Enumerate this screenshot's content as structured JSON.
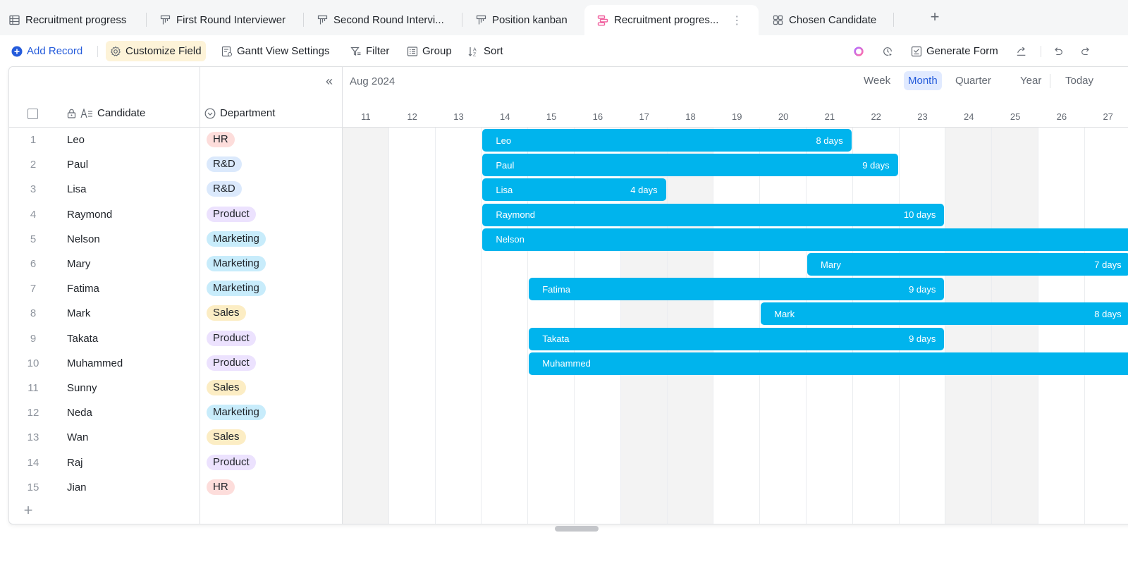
{
  "tabs": [
    {
      "label": "Recruitment progress",
      "icon": "grid-table-icon",
      "active": false
    },
    {
      "label": "First Round Interviewer",
      "icon": "kanban-icon",
      "active": false
    },
    {
      "label": "Second Round Intervi...",
      "icon": "kanban-icon",
      "active": false
    },
    {
      "label": "Position kanban",
      "icon": "kanban-icon",
      "active": false
    },
    {
      "label": "Recruitment progres...",
      "icon": "gantt-icon",
      "active": true
    },
    {
      "label": "Chosen Candidate",
      "icon": "gallery-icon",
      "active": false
    }
  ],
  "tab_add_label": "+",
  "tab_more_label": "⋮",
  "toolbar": {
    "add_record": "Add Record",
    "customize_field": "Customize Field",
    "gantt_settings": "Gantt View Settings",
    "filter": "Filter",
    "group": "Group",
    "sort": "Sort",
    "generate_form": "Generate Form"
  },
  "table": {
    "columns": {
      "candidate": "Candidate",
      "department": "Department"
    },
    "collapse_label": "«",
    "add_row_label": "+",
    "rows": [
      {
        "num": "1",
        "name": "Leo",
        "dept": "HR"
      },
      {
        "num": "2",
        "name": "Paul",
        "dept": "R&D"
      },
      {
        "num": "3",
        "name": "Lisa",
        "dept": "R&D"
      },
      {
        "num": "4",
        "name": "Raymond",
        "dept": "Product"
      },
      {
        "num": "5",
        "name": "Nelson",
        "dept": "Marketing"
      },
      {
        "num": "6",
        "name": "Mary",
        "dept": "Marketing"
      },
      {
        "num": "7",
        "name": "Fatima",
        "dept": "Marketing"
      },
      {
        "num": "8",
        "name": "Mark",
        "dept": "Sales"
      },
      {
        "num": "9",
        "name": "Takata",
        "dept": "Product"
      },
      {
        "num": "10",
        "name": "Muhammed",
        "dept": "Product"
      },
      {
        "num": "11",
        "name": "Sunny",
        "dept": "Sales"
      },
      {
        "num": "12",
        "name": "Neda",
        "dept": "Marketing"
      },
      {
        "num": "13",
        "name": "Wan",
        "dept": "Sales"
      },
      {
        "num": "14",
        "name": "Raj",
        "dept": "Product"
      },
      {
        "num": "15",
        "name": "Jian",
        "dept": "HR"
      }
    ]
  },
  "dept_colors": {
    "HR": "#fddddb",
    "R&D": "#dbe9fc",
    "Product": "#ece2fe",
    "Marketing": "#c8ecfb",
    "Sales": "#fcedc4"
  },
  "gantt": {
    "month_label": "Aug 2024",
    "scales": [
      "Week",
      "Month",
      "Quarter",
      "Year"
    ],
    "active_scale": "Month",
    "today_label": "Today",
    "bar_color": "#00b4ed",
    "days": [
      "11",
      "12",
      "13",
      "14",
      "15",
      "16",
      "17",
      "18",
      "19",
      "20",
      "21",
      "22",
      "23",
      "24",
      "25",
      "26",
      "27"
    ],
    "weekends": [
      "11",
      "17",
      "18",
      "24",
      "25"
    ],
    "bars": [
      {
        "row": 0,
        "label": "Leo",
        "start": "14",
        "days": 8,
        "duration": "8 days"
      },
      {
        "row": 1,
        "label": "Paul",
        "start": "14",
        "days": 9,
        "duration": "9 days"
      },
      {
        "row": 2,
        "label": "Lisa",
        "start": "14",
        "days": 4,
        "duration": "4 days"
      },
      {
        "row": 3,
        "label": "Raymond",
        "start": "14",
        "days": 10,
        "duration": "10 days"
      },
      {
        "row": 4,
        "label": "Nelson",
        "start": "14",
        "days": 16,
        "duration": ""
      },
      {
        "row": 5,
        "label": "Mary",
        "start": "21",
        "days": 7,
        "duration": "7 days"
      },
      {
        "row": 6,
        "label": "Fatima",
        "start": "15",
        "days": 9,
        "duration": "9 days"
      },
      {
        "row": 7,
        "label": "Mark",
        "start": "20",
        "days": 8,
        "duration": "8 days"
      },
      {
        "row": 8,
        "label": "Takata",
        "start": "15",
        "days": 9,
        "duration": "9 days"
      },
      {
        "row": 9,
        "label": "Muhammed",
        "start": "15",
        "days": 16,
        "duration": ""
      }
    ]
  }
}
